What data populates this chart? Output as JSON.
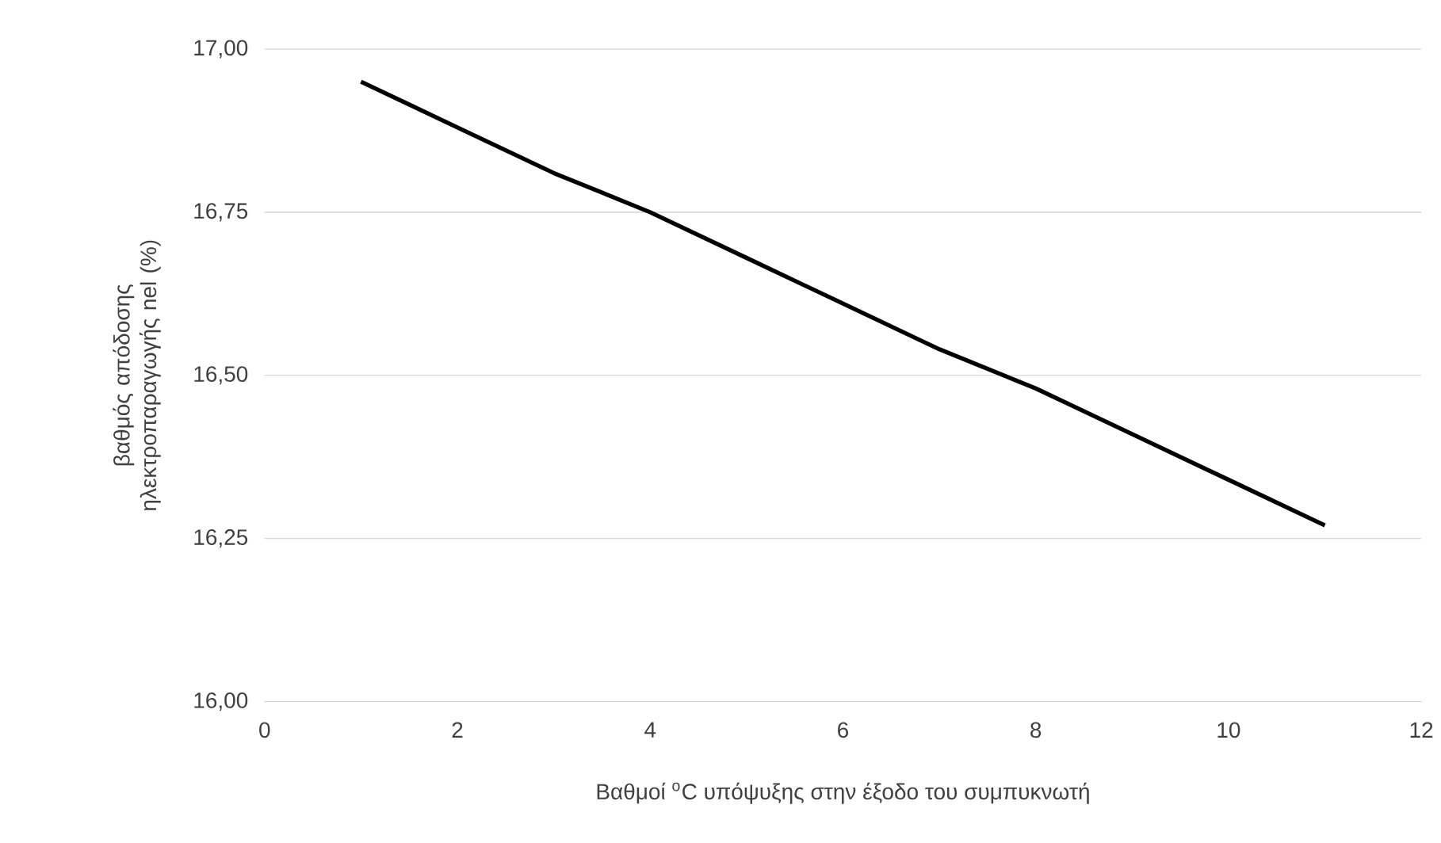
{
  "chart_data": {
    "type": "line",
    "xlabel": "Βαθμοί $^{o}$C υπόψυξης στην έξοδο του συμπυκνωτή",
    "ylabel": "βαθμός απόδοσης ηλεκτροπαραγωγής nel (%)",
    "x": [
      1,
      2,
      3,
      4,
      5,
      6,
      7,
      8,
      9,
      10,
      11
    ],
    "series": [
      {
        "color": "#000000",
        "values": [
          16.95,
          16.88,
          16.81,
          16.75,
          16.68,
          16.61,
          16.54,
          16.48,
          16.41,
          16.34,
          16.27
        ]
      }
    ],
    "xlim": [
      0,
      12
    ],
    "xticks": [
      0,
      2,
      4,
      6,
      8,
      10,
      12
    ],
    "ylim": [
      16,
      17
    ],
    "yticks": [
      {
        "value": 16,
        "label": "16,00"
      },
      {
        "value": 16.25,
        "label": "16,25"
      },
      {
        "value": 16.5,
        "label": "16,50"
      },
      {
        "value": 16.75,
        "label": "16,75"
      },
      {
        "value": 17,
        "label": "17,00"
      }
    ],
    "grid": "y",
    "marker": "none",
    "line_style": "solid"
  }
}
